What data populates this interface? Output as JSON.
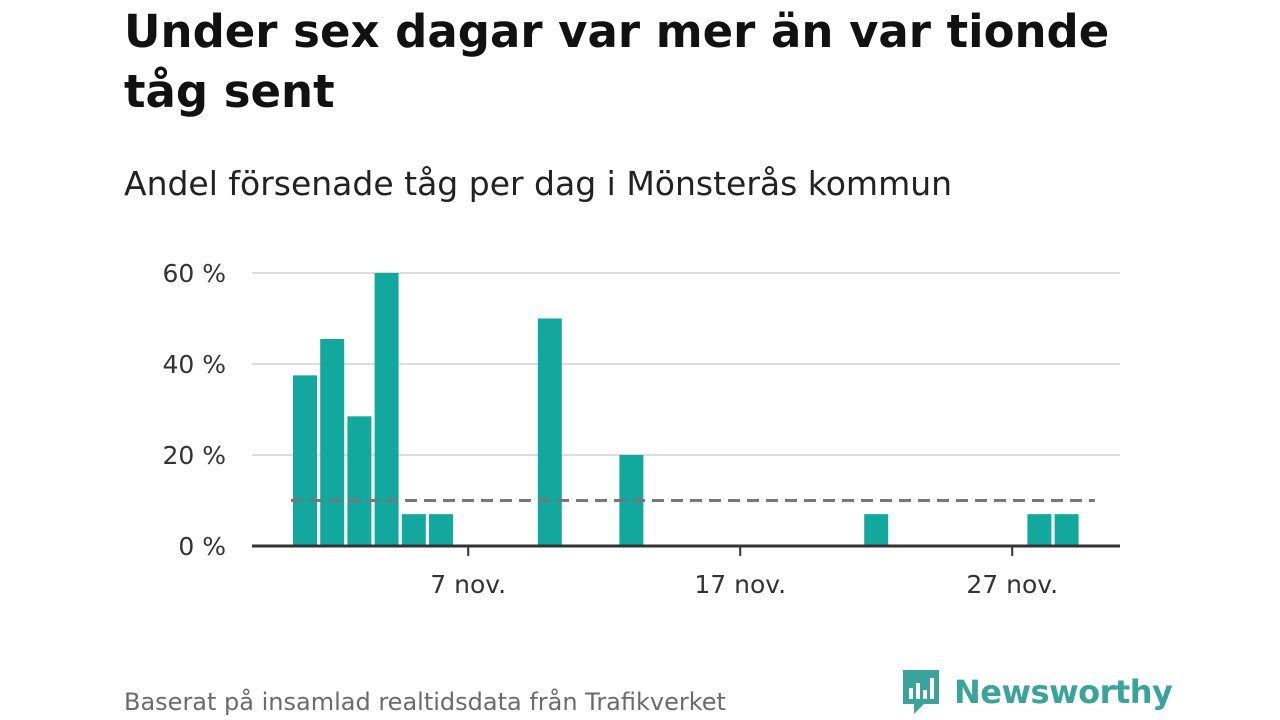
{
  "title": "Under sex dagar var mer än var tionde tåg sent",
  "subtitle": "Andel försenade tåg per dag i Mönsterås kommun",
  "source": "Baserat på insamlad realtidsdata från Trafikverket",
  "brand": {
    "name": "Newsworthy",
    "icon": "newsworthy-logo-icon",
    "color": "#3aa39a"
  },
  "chart_data": {
    "type": "bar",
    "x_unit": "day (November)",
    "x": [
      1,
      2,
      3,
      4,
      5,
      6,
      7,
      8,
      9,
      10,
      11,
      12,
      13,
      14,
      15,
      16,
      17,
      18,
      19,
      20,
      21,
      22,
      23,
      24,
      25,
      26,
      27,
      28,
      29,
      30
    ],
    "values": [
      37.5,
      45.5,
      28.5,
      60,
      7,
      7,
      0,
      0,
      0,
      50,
      0,
      0,
      20,
      0,
      0,
      0,
      0,
      0,
      0,
      0,
      0,
      7,
      0,
      0,
      0,
      0,
      0,
      7,
      7,
      0
    ],
    "ylim": [
      0,
      60
    ],
    "yticks": [
      0,
      20,
      40,
      60
    ],
    "ytick_labels": [
      "0 %",
      "20 %",
      "40 %",
      "60 %"
    ],
    "xticks": [
      7,
      17,
      27
    ],
    "xtick_labels": [
      "7 nov.",
      "17 nov.",
      "27 nov."
    ],
    "reference_line": {
      "value": 10,
      "style": "dashed"
    },
    "grid": true,
    "bar_color": "#13a89e",
    "reference_color": "#777777"
  }
}
